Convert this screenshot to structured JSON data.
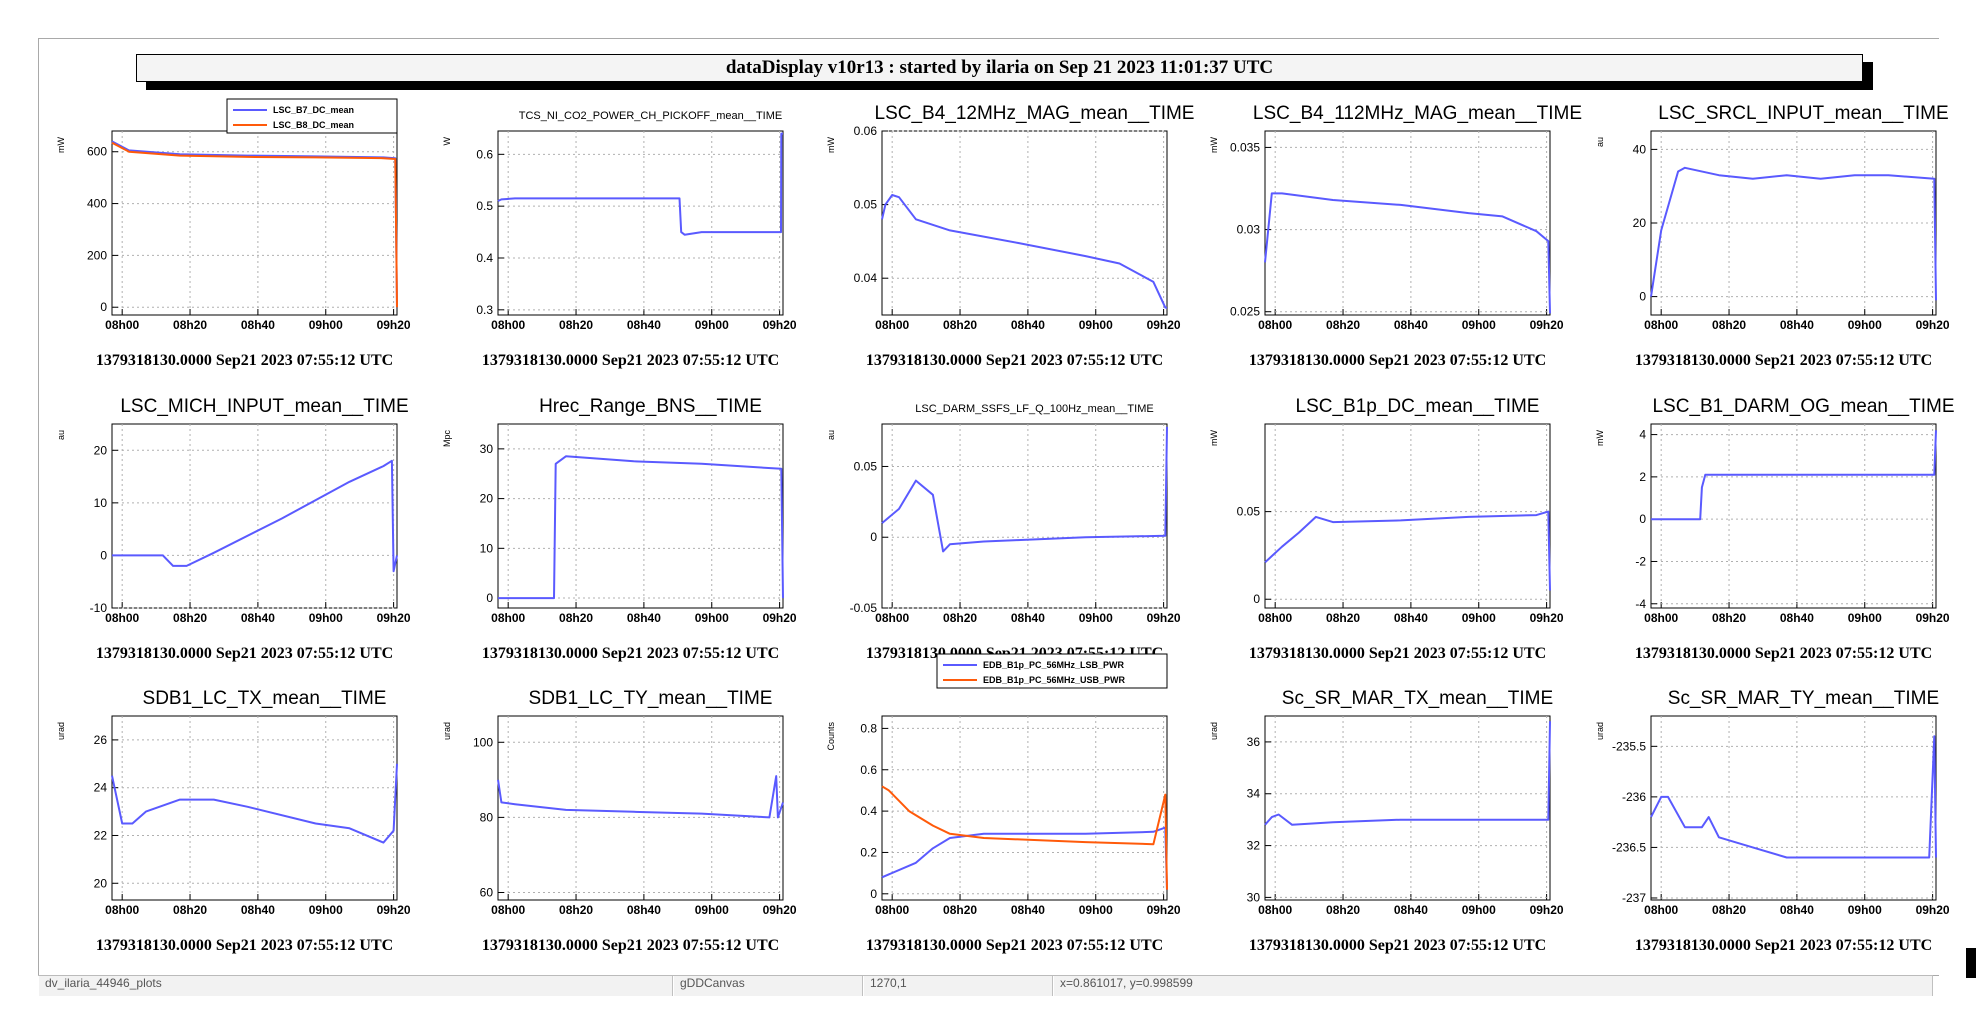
{
  "window": {
    "title": "dataDisplay v10r13 : started by ilaria on Sep 21 2023 11:01:37 UTC"
  },
  "x_ticks": [
    "08h00",
    "08h20",
    "08h40",
    "09h00",
    "09h20"
  ],
  "timestamp_label": "1379318130.0000 Sep21 2023 07:55:12 UTC",
  "status_bar": {
    "name": "dv_ilaria_44946_plots",
    "canvas": "gDDCanvas",
    "coords": "1270,1",
    "xy": "x=0.861017, y=0.998599"
  },
  "colors": {
    "series_blue": "#5a5aff",
    "series_orange": "#ff5a0a",
    "grid": "#b0b0b0"
  },
  "chart_data": [
    {
      "type": "line",
      "title": "",
      "ylabel": "mW",
      "ylim": [
        -30,
        680
      ],
      "yticks": [
        0,
        200,
        400,
        600
      ],
      "legend": {
        "placement": "top-right",
        "entries": [
          "LSC_B7_DC_mean",
          "LSC_B8_DC_mean"
        ]
      },
      "series": [
        {
          "name": "LSC_B7_DC_mean",
          "color": "blue",
          "x": [
            0,
            5,
            20,
            40,
            60,
            80,
            83.5,
            84
          ],
          "y": [
            640,
            605,
            590,
            585,
            582,
            578,
            575,
            0
          ]
        },
        {
          "name": "LSC_B8_DC_mean",
          "color": "orange",
          "x": [
            0,
            5,
            20,
            40,
            60,
            80,
            83.5,
            84
          ],
          "y": [
            635,
            600,
            585,
            580,
            578,
            575,
            572,
            0
          ]
        }
      ]
    },
    {
      "type": "line",
      "title": "TCS_NI_CO2_POWER_CH_PICKOFF_mean__TIME",
      "title_size": "small",
      "ylabel": "W",
      "ylim": [
        0.29,
        0.645
      ],
      "yticks": [
        0.3,
        0.4,
        0.5,
        0.6
      ],
      "series": [
        {
          "name": "",
          "color": "blue",
          "x": [
            0,
            1,
            5,
            20,
            40,
            53.5,
            54,
            55,
            60,
            70,
            83.4,
            83.5,
            84
          ],
          "y": [
            0.51,
            0.513,
            0.515,
            0.515,
            0.515,
            0.515,
            0.45,
            0.445,
            0.45,
            0.45,
            0.45,
            0.64,
            0.64
          ]
        }
      ]
    },
    {
      "type": "line",
      "title": "LSC_B4_12MHz_MAG_mean__TIME",
      "ylabel": "mW",
      "ylim": [
        0.035,
        0.06
      ],
      "yticks": [
        0.04,
        0.05,
        0.06
      ],
      "series": [
        {
          "name": "",
          "color": "blue",
          "x": [
            0,
            1,
            3,
            5,
            10,
            20,
            40,
            60,
            70,
            80,
            83.5,
            84
          ],
          "y": [
            0.048,
            0.05,
            0.0513,
            0.051,
            0.048,
            0.0465,
            0.0448,
            0.043,
            0.042,
            0.0395,
            0.036,
            0.036
          ]
        }
      ]
    },
    {
      "type": "line",
      "title": "LSC_B4_112MHz_MAG_mean__TIME",
      "ylabel": "mW",
      "ylim": [
        0.0248,
        0.036
      ],
      "yticks": [
        0.025,
        0.03,
        0.035
      ],
      "series": [
        {
          "name": "",
          "color": "blue",
          "x": [
            0,
            2,
            5,
            20,
            40,
            60,
            70,
            80,
            83.5,
            84
          ],
          "y": [
            0.028,
            0.0322,
            0.0322,
            0.0318,
            0.0315,
            0.031,
            0.0308,
            0.0299,
            0.0293,
            0.0249
          ]
        }
      ]
    },
    {
      "type": "line",
      "title": "LSC_SRCL_INPUT_mean__TIME",
      "ylabel": "au",
      "ylim": [
        -5,
        45
      ],
      "yticks": [
        0,
        20,
        40
      ],
      "series": [
        {
          "name": "",
          "color": "blue",
          "x": [
            0,
            3,
            8,
            10,
            20,
            30,
            40,
            50,
            60,
            70,
            83.5,
            84
          ],
          "y": [
            0,
            18,
            34,
            35,
            33,
            32,
            33,
            32,
            33,
            33,
            32,
            -1
          ]
        }
      ]
    },
    {
      "type": "line",
      "title": "LSC_MICH_INPUT_mean__TIME",
      "ylabel": "au",
      "ylim": [
        -10,
        25
      ],
      "yticks": [
        -10,
        0,
        10,
        20
      ],
      "series": [
        {
          "name": "",
          "color": "blue",
          "x": [
            0,
            10,
            15,
            18,
            22,
            30,
            50,
            70,
            80,
            82.5,
            83,
            84
          ],
          "y": [
            0,
            0,
            0,
            -2,
            -2,
            0.5,
            7,
            14,
            17,
            18,
            -3,
            0
          ]
        }
      ]
    },
    {
      "type": "line",
      "title": "Hrec_Range_BNS__TIME",
      "ylabel": "Mpc",
      "ylim": [
        -2,
        35
      ],
      "yticks": [
        0,
        10,
        20,
        30
      ],
      "series": [
        {
          "name": "",
          "color": "blue",
          "x": [
            0,
            16.5,
            17,
            20,
            40,
            60,
            83.5,
            84
          ],
          "y": [
            0,
            0,
            27,
            28.5,
            27.5,
            27,
            26,
            0
          ]
        }
      ]
    },
    {
      "type": "line",
      "title": "LSC_DARM_SSFS_LF_Q_100Hz_mean__TIME",
      "title_size": "small",
      "ylabel": "au",
      "ylim": [
        -0.05,
        0.08
      ],
      "yticks": [
        -0.05,
        0,
        0.05
      ],
      "series": [
        {
          "name": "",
          "color": "blue",
          "x": [
            0,
            5,
            10,
            15,
            18,
            20,
            30,
            40,
            60,
            83.5,
            84
          ],
          "y": [
            0.01,
            0.02,
            0.04,
            0.03,
            -0.01,
            -0.005,
            -0.003,
            -0.002,
            0,
            0.001,
            0.078
          ]
        }
      ]
    },
    {
      "type": "line",
      "title": "LSC_B1p_DC_mean__TIME",
      "ylabel": "mW",
      "ylim": [
        -0.005,
        0.1
      ],
      "yticks": [
        0,
        0.05
      ],
      "series": [
        {
          "name": "",
          "color": "blue",
          "x": [
            0,
            5,
            10,
            15,
            20,
            40,
            60,
            80,
            83.5,
            84
          ],
          "y": [
            0.021,
            0.03,
            0.038,
            0.047,
            0.044,
            0.045,
            0.047,
            0.048,
            0.05,
            0.005
          ]
        }
      ]
    },
    {
      "type": "line",
      "title": "LSC_B1_DARM_OG_mean__TIME",
      "ylabel": "mW",
      "ylim": [
        -4.2,
        4.5
      ],
      "yticks": [
        -4,
        -2,
        0,
        2,
        4
      ],
      "series": [
        {
          "name": "",
          "color": "blue",
          "x": [
            0,
            14.5,
            15,
            16,
            20,
            40,
            60,
            83.5,
            84
          ],
          "y": [
            0,
            0,
            1.5,
            2.1,
            2.1,
            2.1,
            2.1,
            2.1,
            4.2
          ]
        }
      ]
    },
    {
      "type": "line",
      "title": "SDB1_LC_TX_mean__TIME",
      "ylabel": "urad",
      "ylim": [
        19.3,
        27
      ],
      "yticks": [
        20,
        22,
        24,
        26
      ],
      "series": [
        {
          "name": "",
          "color": "blue",
          "x": [
            0,
            3,
            6,
            10,
            20,
            30,
            40,
            60,
            70,
            80,
            83,
            84
          ],
          "y": [
            24.5,
            22.5,
            22.5,
            23,
            23.5,
            23.5,
            23.2,
            22.5,
            22.3,
            21.7,
            22.2,
            25
          ]
        }
      ]
    },
    {
      "type": "line",
      "title": "SDB1_LC_TY_mean__TIME",
      "ylabel": "urad",
      "ylim": [
        58,
        107
      ],
      "yticks": [
        60,
        80,
        100
      ],
      "series": [
        {
          "name": "",
          "color": "blue",
          "x": [
            0,
            1,
            5,
            20,
            40,
            60,
            80,
            82,
            82.5,
            84
          ],
          "y": [
            90,
            84,
            83.5,
            82,
            81.5,
            81,
            80,
            91,
            80,
            84
          ]
        }
      ]
    },
    {
      "type": "line",
      "title": "",
      "ylabel": "Counts",
      "ylim": [
        -0.03,
        0.86
      ],
      "yticks": [
        0,
        0.2,
        0.4,
        0.6,
        0.8
      ],
      "legend": {
        "placement": "top-right",
        "entries": [
          "EDB_B1p_PC_56MHz_LSB_PWR",
          "EDB_B1p_PC_56MHz_USB_PWR"
        ]
      },
      "series": [
        {
          "name": "EDB_B1p_PC_56MHz_LSB_PWR",
          "color": "blue",
          "x": [
            0,
            10,
            15,
            20,
            30,
            60,
            80,
            83.5,
            84
          ],
          "y": [
            0.08,
            0.15,
            0.22,
            0.27,
            0.29,
            0.29,
            0.3,
            0.32,
            0.02
          ]
        },
        {
          "name": "EDB_B1p_PC_56MHz_USB_PWR",
          "color": "orange",
          "x": [
            0,
            2,
            8,
            15,
            20,
            30,
            60,
            80,
            83.5,
            84
          ],
          "y": [
            0.52,
            0.5,
            0.4,
            0.33,
            0.29,
            0.27,
            0.25,
            0.24,
            0.48,
            0.02
          ]
        }
      ]
    },
    {
      "type": "line",
      "title": "Sc_SR_MAR_TX_mean__TIME",
      "ylabel": "urad",
      "ylim": [
        29.9,
        37
      ],
      "yticks": [
        30,
        32,
        34,
        36
      ],
      "series": [
        {
          "name": "",
          "color": "blue",
          "x": [
            0,
            2,
            4,
            8,
            20,
            40,
            60,
            83.5,
            84
          ],
          "y": [
            32.8,
            33.1,
            33.2,
            32.8,
            32.9,
            33,
            33,
            33,
            36.8
          ]
        }
      ]
    },
    {
      "type": "line",
      "title": "Sc_SR_MAR_TY_mean__TIME",
      "ylabel": "urad",
      "ylim": [
        -237.02,
        -235.2
      ],
      "yticks": [
        -235.5,
        -236,
        -236.5,
        -237
      ],
      "series": [
        {
          "name": "",
          "color": "blue",
          "x": [
            0,
            3,
            5,
            10,
            15,
            17,
            20,
            30,
            40,
            60,
            80,
            82,
            83.5,
            84
          ],
          "y": [
            -236.2,
            -236,
            -236,
            -236.3,
            -236.3,
            -236.2,
            -236.4,
            -236.5,
            -236.6,
            -236.6,
            -236.6,
            -236.6,
            -235.4,
            -236.6
          ]
        }
      ]
    }
  ]
}
